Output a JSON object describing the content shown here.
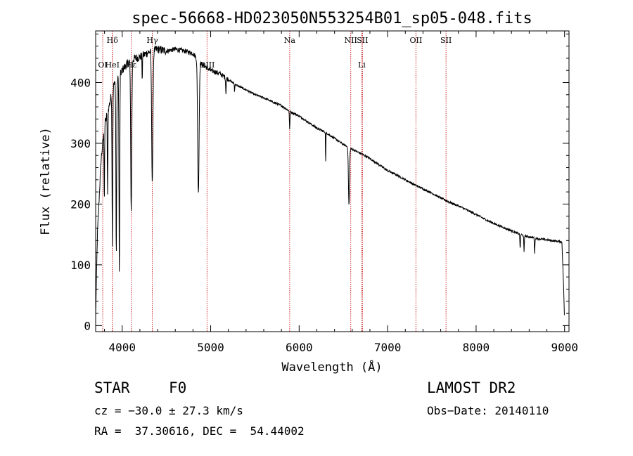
{
  "chart_data": {
    "type": "line",
    "title": "spec-56668-HD023050N553254B01_sp05-048.fits",
    "xlabel": "Wavelength (Å)",
    "ylabel": "Flux (relative)",
    "xlim": [
      3700,
      9050
    ],
    "ylim": [
      -10,
      485
    ],
    "x_ticks": [
      4000,
      5000,
      6000,
      7000,
      8000,
      9000
    ],
    "y_ticks": [
      0,
      100,
      200,
      300,
      400
    ],
    "grid": false,
    "colors": {
      "spectrum": "#000000",
      "lines": "#cc3333"
    },
    "reference_lines": [
      {
        "name": "Hδ",
        "x": 3889,
        "tier": 0
      },
      {
        "name": "OI",
        "x": 3780,
        "tier": 1
      },
      {
        "name": "HeI",
        "x": 3889,
        "tier": 1
      },
      {
        "name": "Hε",
        "x": 4102,
        "tier": 1
      },
      {
        "name": "Hγ",
        "x": 4340,
        "tier": 0
      },
      {
        "name": "OIII",
        "x": 4959,
        "tier": 1
      },
      {
        "name": "Na",
        "x": 5893,
        "tier": 0
      },
      {
        "name": "NII",
        "x": 6583,
        "tier": 0
      },
      {
        "name": "SII",
        "x": 6716,
        "tier": 0
      },
      {
        "name": "Li",
        "x": 6708,
        "tier": 1
      },
      {
        "name": "OII",
        "x": 7320,
        "tier": 0
      },
      {
        "name": "SII",
        "x": 7660,
        "tier": 0
      }
    ],
    "series": [
      {
        "continuum": [
          [
            3700,
            15
          ],
          [
            3720,
            150
          ],
          [
            3760,
            270
          ],
          [
            3800,
            330
          ],
          [
            3850,
            360
          ],
          [
            3900,
            395
          ],
          [
            3950,
            405
          ],
          [
            4000,
            420
          ],
          [
            4050,
            430
          ],
          [
            4100,
            438
          ],
          [
            4200,
            442
          ],
          [
            4300,
            450
          ],
          [
            4400,
            455
          ],
          [
            4500,
            452
          ],
          [
            4600,
            455
          ],
          [
            4700,
            452
          ],
          [
            4800,
            448
          ],
          [
            4900,
            430
          ],
          [
            5000,
            420
          ],
          [
            5100,
            415
          ],
          [
            5200,
            405
          ],
          [
            5300,
            395
          ],
          [
            5400,
            388
          ],
          [
            5500,
            380
          ],
          [
            5600,
            375
          ],
          [
            5700,
            368
          ],
          [
            5800,
            362
          ],
          [
            5900,
            352
          ],
          [
            6000,
            345
          ],
          [
            6100,
            335
          ],
          [
            6200,
            325
          ],
          [
            6300,
            318
          ],
          [
            6400,
            308
          ],
          [
            6500,
            298
          ],
          [
            6600,
            290
          ],
          [
            6700,
            283
          ],
          [
            6800,
            275
          ],
          [
            6900,
            265
          ],
          [
            7000,
            255
          ],
          [
            7100,
            248
          ],
          [
            7200,
            240
          ],
          [
            7300,
            232
          ],
          [
            7400,
            225
          ],
          [
            7500,
            218
          ],
          [
            7600,
            210
          ],
          [
            7700,
            203
          ],
          [
            7800,
            197
          ],
          [
            7900,
            190
          ],
          [
            8000,
            183
          ],
          [
            8100,
            175
          ],
          [
            8200,
            168
          ],
          [
            8300,
            162
          ],
          [
            8400,
            156
          ],
          [
            8500,
            150
          ],
          [
            8600,
            146
          ],
          [
            8700,
            143
          ],
          [
            8800,
            141
          ],
          [
            8900,
            139
          ],
          [
            8970,
            138
          ],
          [
            8990,
            60
          ],
          [
            9000,
            5
          ]
        ],
        "absorption": [
          [
            3798,
            120,
            3
          ],
          [
            3835,
            140,
            3
          ],
          [
            3889,
            250,
            4
          ],
          [
            3933,
            290,
            4
          ],
          [
            3968,
            330,
            4
          ],
          [
            4102,
            250,
            6
          ],
          [
            4226,
            50,
            2
          ],
          [
            4340,
            215,
            7
          ],
          [
            4861,
            220,
            8
          ],
          [
            5172,
            25,
            3
          ],
          [
            5270,
            15,
            2
          ],
          [
            5893,
            30,
            3
          ],
          [
            6300,
            55,
            2
          ],
          [
            6563,
            95,
            6
          ],
          [
            8498,
            25,
            3
          ],
          [
            8542,
            28,
            3
          ],
          [
            8662,
            25,
            3
          ]
        ]
      }
    ]
  },
  "footer": {
    "object_type": "STAR",
    "subclass": "F0",
    "survey": "LAMOST DR2",
    "cz": "cz = −30.0 ± 27.3 km/s",
    "obs_date": "Obs−Date: 20140110",
    "radec": "RA =  37.30616, DEC =  54.44002"
  }
}
